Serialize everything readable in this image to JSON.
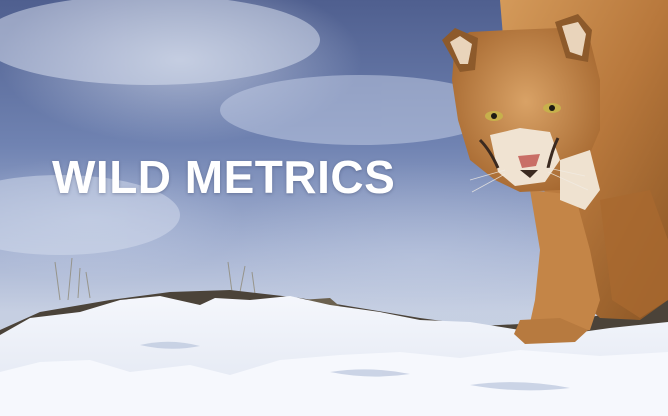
{
  "hero": {
    "title": "WILD METRICS",
    "subject": "cougar-on-snowy-rocks"
  },
  "colors": {
    "sky_dark": "#4f5f8f",
    "sky_light": "#c9d1e3",
    "snow": "#f4f6fb",
    "fur": "#c98a4a",
    "title_text": "#ffffff"
  }
}
